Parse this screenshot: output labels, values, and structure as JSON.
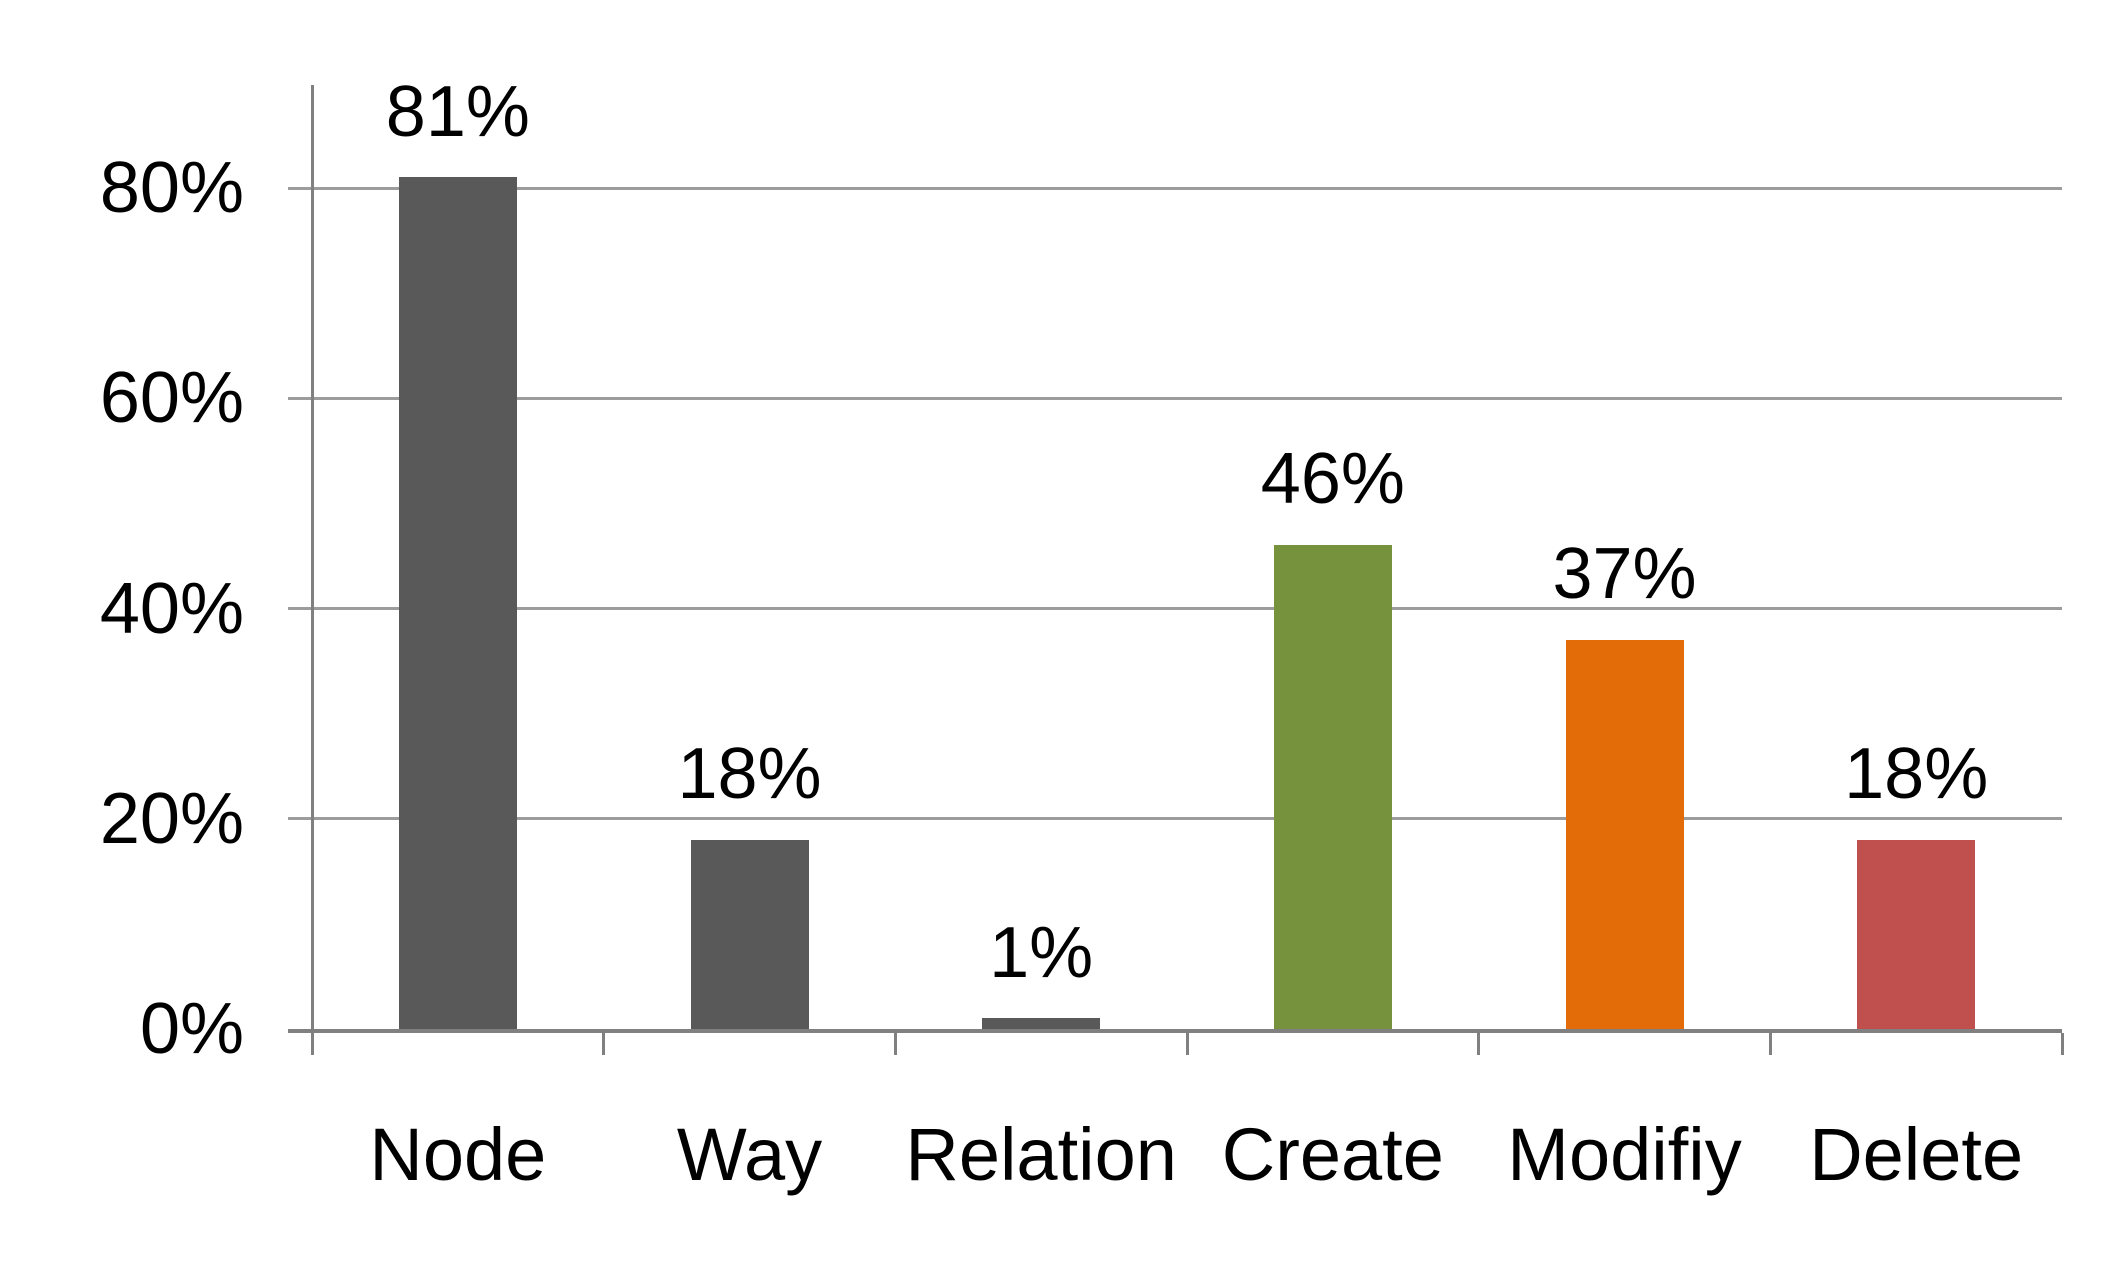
{
  "chart_data": {
    "type": "bar",
    "title": "",
    "xlabel": "",
    "ylabel": "",
    "categories": [
      "Node",
      "Way",
      "Relation",
      "Create",
      "Modifiy",
      "Delete"
    ],
    "values": [
      81,
      18,
      1,
      46,
      37,
      18
    ],
    "value_labels": [
      "81%",
      "18%",
      "1%",
      "46%",
      "37%",
      "18%"
    ],
    "bar_colors": [
      "#595959",
      "#595959",
      "#595959",
      "#76923C",
      "#E36C09",
      "#C0504D"
    ],
    "y_axis": {
      "tick_values": [
        0,
        20,
        40,
        60,
        80
      ],
      "tick_labels": [
        "0%",
        "20%",
        "40%",
        "60%",
        "80%"
      ]
    },
    "ylim": [
      0,
      90
    ],
    "grid": true,
    "legend": false,
    "style": {
      "background": "#ffffff",
      "gridline_color": "#9c9c9c",
      "axis_color": "#808080",
      "label_color": "#000000"
    }
  }
}
